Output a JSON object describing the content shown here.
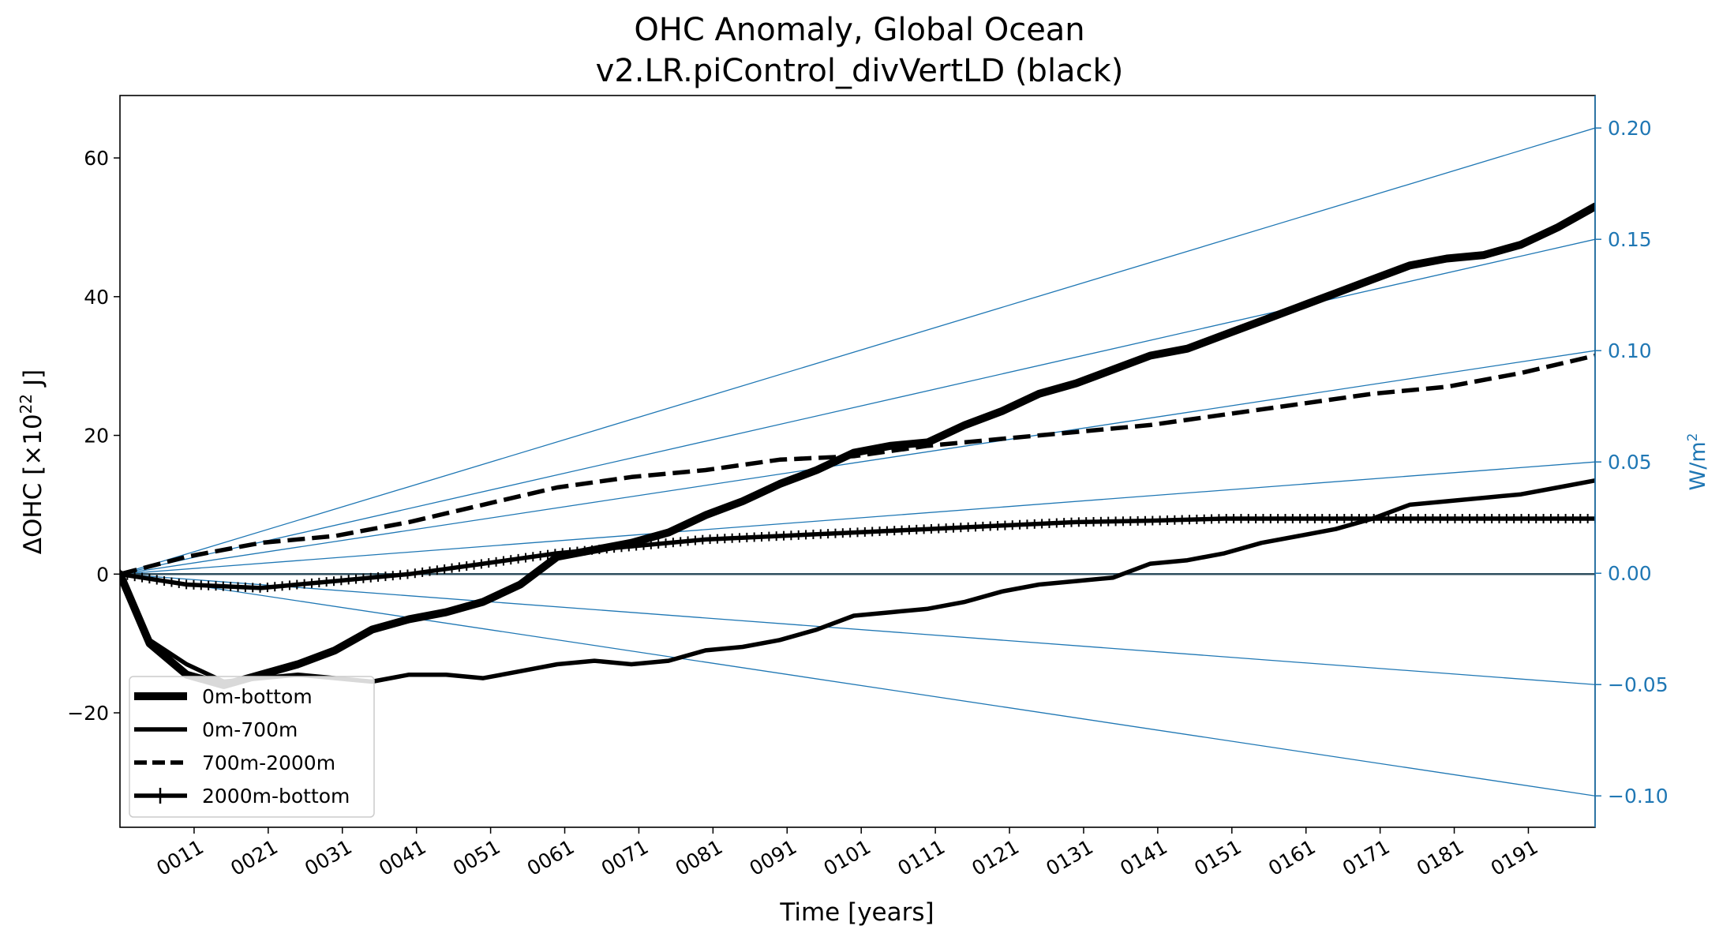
{
  "chart_data": {
    "type": "line",
    "title_line1": "OHC Anomaly, Global Ocean",
    "title_line2": "v2.LR.piControl_divVertLD (black)",
    "xlabel": "Time [years]",
    "ylabel_prefix": "ΔOHC [×10",
    "ylabel_exp": "22",
    "ylabel_suffix": " J]",
    "y2label_prefix": "W/m",
    "y2label_exp": "2",
    "xlim": [
      1,
      200
    ],
    "ylim": [
      -36.5,
      69
    ],
    "y2lim": [
      -0.1141,
      0.2146
    ],
    "x_ticks": [
      11,
      21,
      31,
      41,
      51,
      61,
      71,
      81,
      91,
      101,
      111,
      121,
      131,
      141,
      151,
      161,
      171,
      181,
      191
    ],
    "x_tick_labels": [
      "0011",
      "0021",
      "0031",
      "0041",
      "0051",
      "0061",
      "0071",
      "0081",
      "0091",
      "0101",
      "0111",
      "0121",
      "0131",
      "0141",
      "0151",
      "0161",
      "0171",
      "0181",
      "0191"
    ],
    "y_ticks": [
      -20,
      0,
      20,
      40,
      60
    ],
    "y_tick_labels": [
      "−20",
      "0",
      "20",
      "40",
      "60"
    ],
    "y2_ticks": [
      -0.1,
      -0.05,
      0.0,
      0.05,
      0.1,
      0.15,
      0.2
    ],
    "y2_tick_labels": [
      "−0.10",
      "−0.05",
      "0.00",
      "0.05",
      "0.10",
      "0.15",
      "0.20"
    ],
    "reference_rates_w_m2": [
      -0.1,
      -0.05,
      0.0,
      0.05,
      0.1,
      0.15,
      0.2
    ],
    "legend_location": "lower-left",
    "colors": {
      "series": "#000000",
      "reference": "#1f77b4",
      "zero_line": "#2f4f5f"
    },
    "series": [
      {
        "name": "0m-bottom",
        "style": "thick-solid",
        "x": [
          1,
          5,
          10,
          15,
          20,
          25,
          30,
          35,
          40,
          45,
          50,
          55,
          60,
          65,
          70,
          75,
          80,
          85,
          90,
          95,
          100,
          105,
          110,
          115,
          120,
          125,
          130,
          135,
          140,
          145,
          150,
          155,
          160,
          165,
          170,
          175,
          180,
          185,
          190,
          195,
          200
        ],
        "y": [
          0,
          -10,
          -14.5,
          -16,
          -14.5,
          -13,
          -11,
          -8,
          -6.5,
          -5.5,
          -4,
          -1.5,
          2.5,
          3.5,
          4.5,
          6,
          8.5,
          10.5,
          13,
          15,
          17.5,
          18.5,
          19,
          21.5,
          23.5,
          26,
          27.5,
          29.5,
          31.5,
          32.5,
          34.5,
          36.5,
          38.5,
          40.5,
          42.5,
          44.5,
          45.5,
          46,
          47.5,
          50,
          53
        ]
      },
      {
        "name": "0m-700m",
        "style": "solid",
        "x": [
          1,
          5,
          10,
          15,
          20,
          25,
          30,
          35,
          40,
          45,
          50,
          55,
          60,
          65,
          70,
          75,
          80,
          85,
          90,
          95,
          100,
          105,
          110,
          115,
          120,
          125,
          130,
          135,
          140,
          145,
          150,
          155,
          160,
          165,
          170,
          175,
          180,
          185,
          190,
          195,
          200
        ],
        "y": [
          0,
          -9.5,
          -13,
          -15.5,
          -15,
          -14.5,
          -15,
          -15.5,
          -14.5,
          -14.5,
          -15,
          -14,
          -13,
          -12.5,
          -13,
          -12.5,
          -11,
          -10.5,
          -9.5,
          -8,
          -6,
          -5.5,
          -5,
          -4,
          -2.5,
          -1.5,
          -1,
          -0.5,
          1.5,
          2,
          3,
          4.5,
          5.5,
          6.5,
          8,
          10,
          10.5,
          11,
          11.5,
          12.5,
          13.5
        ]
      },
      {
        "name": "700m-2000m",
        "style": "dashed",
        "x": [
          1,
          10,
          20,
          30,
          40,
          50,
          60,
          70,
          80,
          90,
          100,
          110,
          120,
          130,
          140,
          150,
          160,
          170,
          180,
          190,
          200
        ],
        "y": [
          0,
          2.5,
          4.5,
          5.5,
          7.5,
          10,
          12.5,
          14,
          15,
          16.5,
          17,
          18.5,
          19.5,
          20.5,
          21.5,
          23,
          24.5,
          26,
          27,
          29,
          31.5
        ]
      },
      {
        "name": "2000m-bottom",
        "style": "plus-marker",
        "x": [
          1,
          10,
          20,
          30,
          40,
          50,
          60,
          70,
          80,
          90,
          100,
          110,
          120,
          130,
          140,
          150,
          160,
          170,
          180,
          190,
          200
        ],
        "y": [
          0,
          -1.5,
          -2,
          -1,
          0,
          1.5,
          3,
          4,
          5,
          5.5,
          6,
          6.5,
          7,
          7.5,
          7.7,
          8,
          8,
          8,
          8,
          8,
          8
        ]
      }
    ]
  }
}
